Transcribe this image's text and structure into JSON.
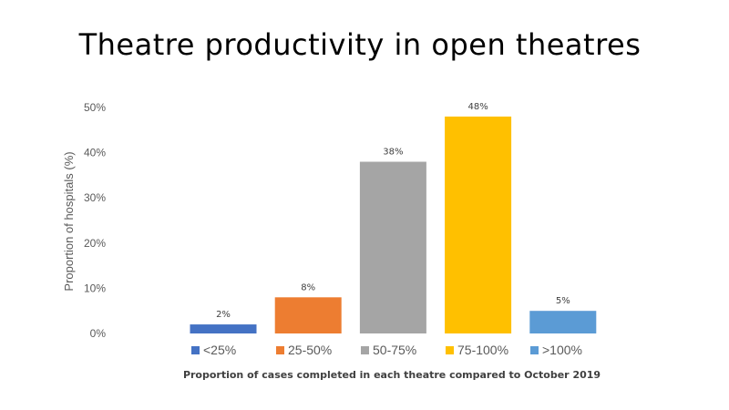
{
  "chart_data": {
    "type": "bar",
    "title": "Theatre productivity in open theatres",
    "xlabel": "Proportion of cases completed in each theatre compared to October 2019",
    "ylabel": "Proportion of hospitals (%)",
    "ylim": [
      0,
      50
    ],
    "yticks": [
      "0%",
      "10%",
      "20%",
      "30%",
      "40%",
      "50%"
    ],
    "categories": [
      "<25%",
      "25-50%",
      "50-75%",
      "75-100%",
      ">100%"
    ],
    "values": [
      2,
      8,
      38,
      48,
      5
    ],
    "data_labels": [
      "2%",
      "8%",
      "38%",
      "48%",
      "5%"
    ],
    "colors": [
      "#4472C4",
      "#ED7D31",
      "#A5A5A5",
      "#FFC000",
      "#5B9BD5"
    ],
    "grid": false,
    "legend_position": "bottom"
  }
}
